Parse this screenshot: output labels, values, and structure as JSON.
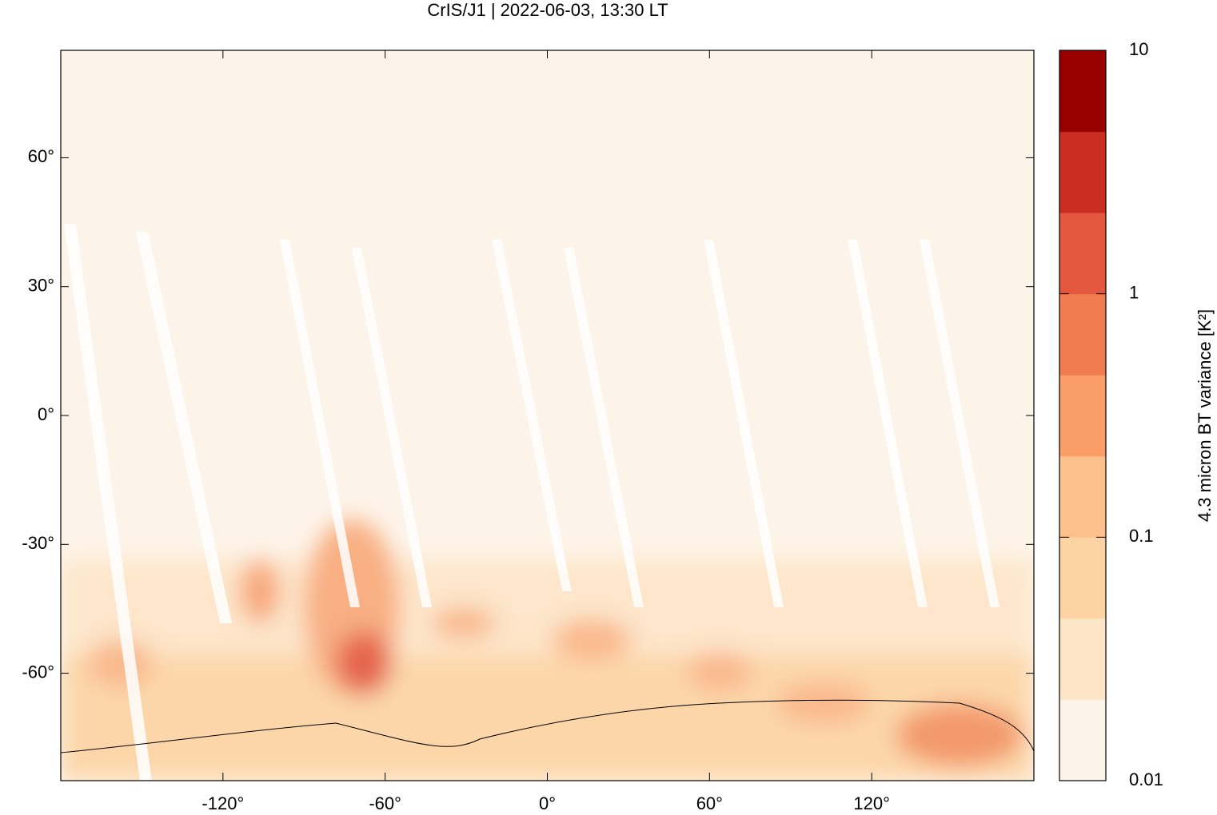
{
  "chart_data": {
    "type": "map",
    "title": "CrIS/J1 | 2022-06-03, 13:30 LT",
    "xlim": [
      -180,
      180
    ],
    "ylim": [
      -85,
      85
    ],
    "xticks": [
      {
        "value": -120,
        "label": "-120°"
      },
      {
        "value": -60,
        "label": "-60°"
      },
      {
        "value": 0,
        "label": "0°"
      },
      {
        "value": 60,
        "label": "60°"
      },
      {
        "value": 120,
        "label": "120°"
      }
    ],
    "yticks": [
      {
        "value": -60,
        "label": "-60°"
      },
      {
        "value": -30,
        "label": "-30°"
      },
      {
        "value": 0,
        "label": "0°"
      },
      {
        "value": 30,
        "label": "30°"
      },
      {
        "value": 60,
        "label": "60°"
      }
    ],
    "colorbar": {
      "label": "4.3 micron BT variance [K²]",
      "log": true,
      "lim": [
        0.01,
        10
      ],
      "ticks": [
        0.01,
        0.1,
        1,
        10
      ],
      "colors": [
        "#fdf4e9",
        "#fde5c8",
        "#fcd3a3",
        "#fcc08c",
        "#fa9d67",
        "#f17c4f",
        "#e3573e",
        "#c92d1f",
        "#990000"
      ]
    }
  }
}
